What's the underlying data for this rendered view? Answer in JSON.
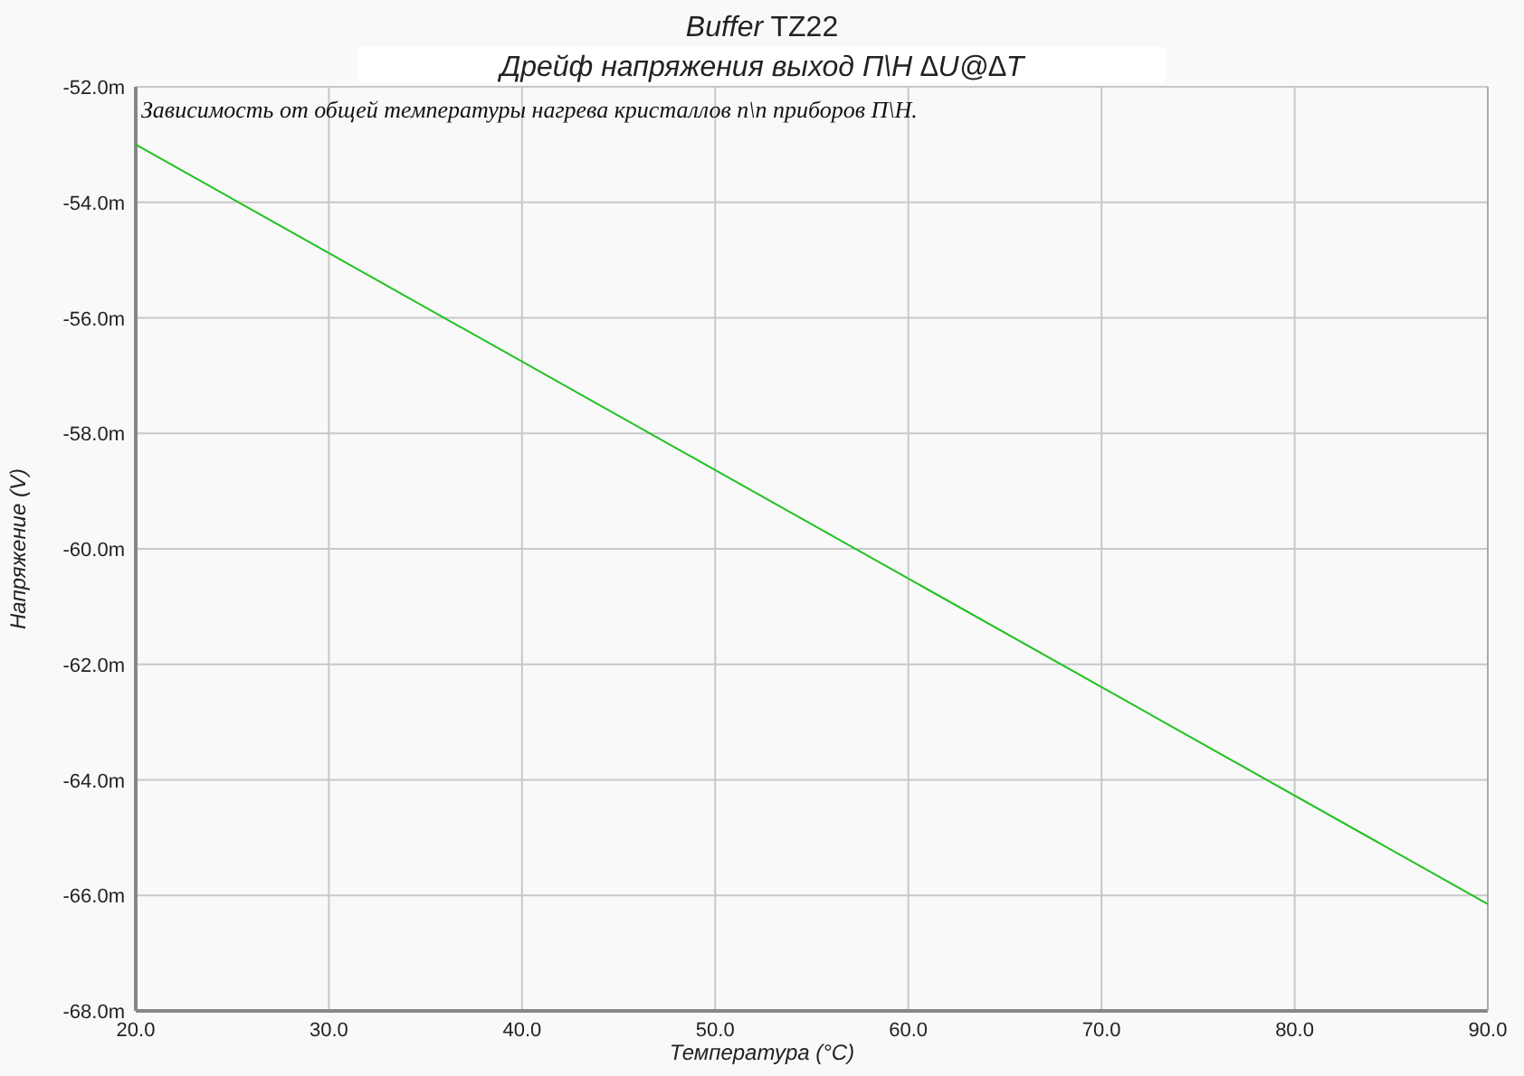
{
  "chart_data": {
    "type": "line",
    "title": "Buffer TZ22",
    "subtitle": "Дрейф напряжения выход  П\\Н  ∆U@∆T",
    "xlabel": "Температура (°C)",
    "ylabel": "Напряжение (V)",
    "annotations": [
      "Зависимость от общей температуры нагрева кристаллов п\\п приборов  П\\Н."
    ],
    "x": [
      20,
      90
    ],
    "series": [
      {
        "color": "#1fc21f",
        "values": [
          -53.0,
          -66.15
        ]
      }
    ],
    "xlim": [
      20,
      90
    ],
    "xticks": [
      {
        "value": 20,
        "label": "20.0"
      },
      {
        "value": 30,
        "label": "30.0"
      },
      {
        "value": 40,
        "label": "40.0"
      },
      {
        "value": 50,
        "label": "50.0"
      },
      {
        "value": 60,
        "label": "60.0"
      },
      {
        "value": 70,
        "label": "70.0"
      },
      {
        "value": 80,
        "label": "80.0"
      },
      {
        "value": 90,
        "label": "90.0"
      }
    ],
    "ylim": [
      -68,
      -52
    ],
    "yticks": [
      {
        "value": -68,
        "label": "-68.0m"
      },
      {
        "value": -66,
        "label": "-66.0m"
      },
      {
        "value": -64,
        "label": "-64.0m"
      },
      {
        "value": -62,
        "label": "-62.0m"
      },
      {
        "value": -60,
        "label": "-60.0m"
      },
      {
        "value": -58,
        "label": "-58.0m"
      },
      {
        "value": -56,
        "label": "-56.0m"
      },
      {
        "value": -54,
        "label": "-54.0m"
      },
      {
        "value": -52,
        "label": "-52.0m"
      }
    ],
    "grid": true,
    "marker": "none",
    "line_style": "solid"
  }
}
